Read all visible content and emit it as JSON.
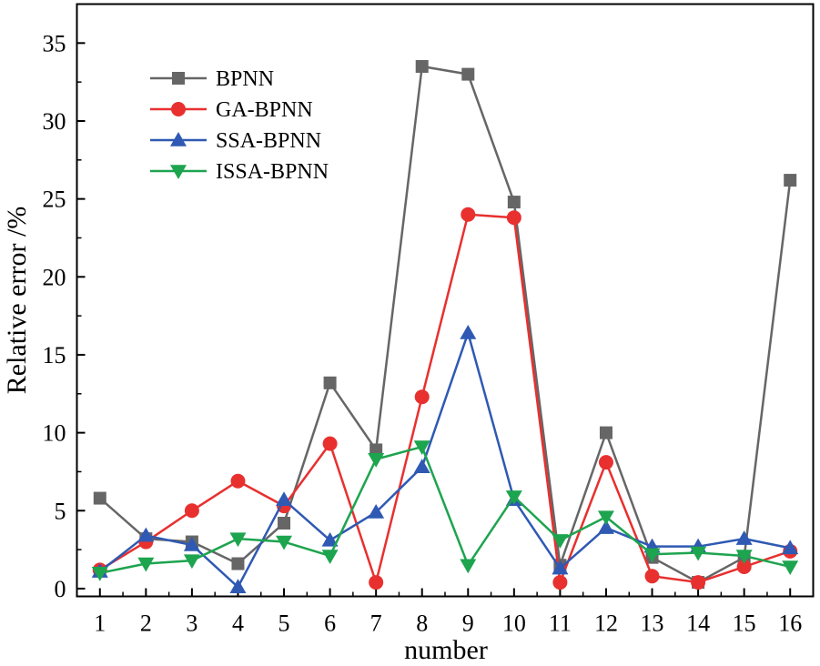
{
  "chart_data": {
    "type": "line",
    "title": "",
    "xlabel": "number",
    "ylabel": "Relative error /%",
    "x": [
      1,
      2,
      3,
      4,
      5,
      6,
      7,
      8,
      9,
      10,
      11,
      12,
      13,
      14,
      15,
      16
    ],
    "x_tick_labels": [
      "1",
      "2",
      "3",
      "4",
      "5",
      "6",
      "7",
      "8",
      "9",
      "10",
      "11",
      "12",
      "13",
      "14",
      "15",
      "16"
    ],
    "xlim": [
      0.5,
      16.5
    ],
    "ylim": [
      -0.5,
      37.5
    ],
    "y_ticks": [
      0,
      5,
      10,
      15,
      20,
      25,
      30,
      35
    ],
    "y_tick_labels": [
      "0",
      "5",
      "10",
      "15",
      "20",
      "25",
      "30",
      "35"
    ],
    "grid": false,
    "legend_position": "top-left",
    "series": [
      {
        "name": "BPNN",
        "color": "#666666",
        "marker": "square",
        "values": [
          5.8,
          3.2,
          3.0,
          1.6,
          4.2,
          13.2,
          8.9,
          33.5,
          33.0,
          24.8,
          1.5,
          10.0,
          2.0,
          0.4,
          2.0,
          26.2
        ]
      },
      {
        "name": "GA-BPNN",
        "color": "#e8302f",
        "marker": "circle",
        "values": [
          1.2,
          3.0,
          5.0,
          6.9,
          5.3,
          9.3,
          0.4,
          12.3,
          24.0,
          23.8,
          0.4,
          8.1,
          0.8,
          0.4,
          1.4,
          2.4
        ]
      },
      {
        "name": "SSA-BPNN",
        "color": "#2f59b3",
        "marker": "triangle-up",
        "values": [
          1.1,
          3.4,
          2.8,
          0.1,
          5.7,
          3.1,
          4.9,
          7.8,
          16.4,
          5.7,
          1.3,
          3.9,
          2.7,
          2.7,
          3.2,
          2.6
        ]
      },
      {
        "name": "ISSA-BPNN",
        "color": "#1da44f",
        "marker": "triangle-down",
        "values": [
          1.0,
          1.6,
          1.8,
          3.2,
          3.0,
          2.1,
          8.3,
          9.1,
          1.5,
          5.9,
          3.1,
          4.6,
          2.2,
          2.3,
          2.1,
          1.4
        ]
      }
    ]
  }
}
